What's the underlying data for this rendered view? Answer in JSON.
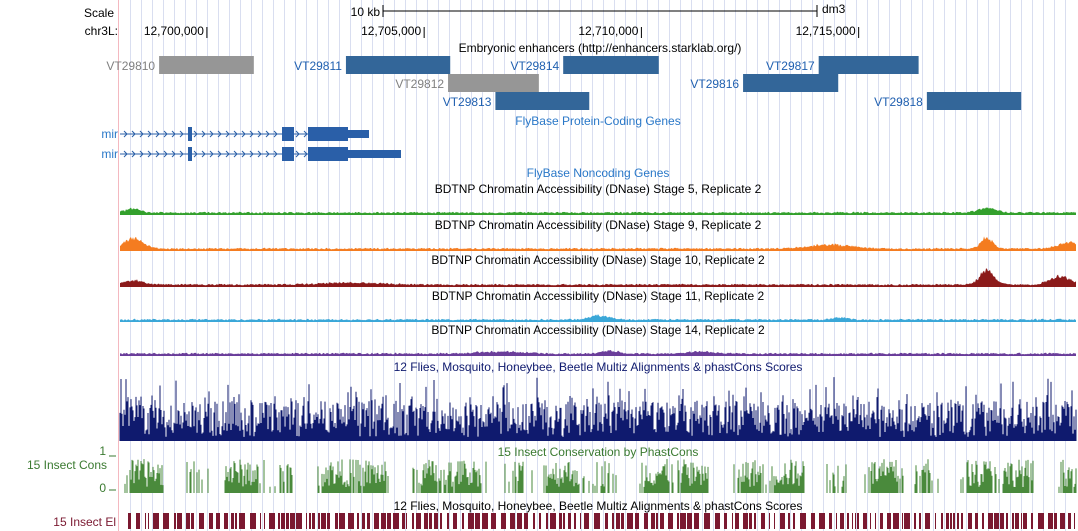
{
  "ruler": {
    "scale_label": "Scale",
    "chrom_label": "chr3L:",
    "scale_bar_label": "10 kb",
    "assembly": "dm3",
    "ticks": [
      {
        "pos": 12700000,
        "label": "12,700,000"
      },
      {
        "pos": 12705000,
        "label": "12,705,000"
      },
      {
        "pos": 12710000,
        "label": "12,710,000"
      },
      {
        "pos": 12715000,
        "label": "12,715,000"
      }
    ]
  },
  "tracks": {
    "enhancers": {
      "title": "Embryonic enhancers (http://enhancers.starklab.org/)",
      "items": [
        {
          "name": "VT29810",
          "start": 12698900,
          "end": 12701080,
          "row": 0,
          "color": "#969696"
        },
        {
          "name": "VT29811",
          "start": 12703200,
          "end": 12705600,
          "row": 0,
          "color": "#336699"
        },
        {
          "name": "VT29814",
          "start": 12708200,
          "end": 12710400,
          "row": 0,
          "color": "#336699"
        },
        {
          "name": "VT29817",
          "start": 12714080,
          "end": 12716380,
          "row": 0,
          "color": "#336699"
        },
        {
          "name": "VT29812",
          "start": 12705550,
          "end": 12707640,
          "row": 1,
          "color": "#969696"
        },
        {
          "name": "VT29816",
          "start": 12712340,
          "end": 12714530,
          "row": 1,
          "color": "#336699"
        },
        {
          "name": "VT29813",
          "start": 12706640,
          "end": 12708800,
          "row": 2,
          "color": "#336699"
        },
        {
          "name": "VT29818",
          "start": 12716570,
          "end": 12718740,
          "row": 2,
          "color": "#336699"
        }
      ]
    },
    "protein_genes": {
      "title": "FlyBase Protein-Coding Genes",
      "transcripts": [
        {
          "label": "mir"
        },
        {
          "label": "mir"
        }
      ]
    },
    "noncoding": {
      "title": "FlyBase Noncoding Genes"
    },
    "dnase": [
      {
        "title": "BDTNP Chromatin Accessibility (DNase) Stage 5, Replicate 2",
        "color": "#33a02c"
      },
      {
        "title": "BDTNP Chromatin Accessibility (DNase) Stage 9, Replicate 2",
        "color": "#f47c20"
      },
      {
        "title": "BDTNP Chromatin Accessibility (DNase) Stage 10, Replicate 2",
        "color": "#8b1a1a"
      },
      {
        "title": "BDTNP Chromatin Accessibility (DNase) Stage 11, Replicate 2",
        "color": "#3aa7d8"
      },
      {
        "title": "BDTNP Chromatin Accessibility (DNase) Stage 14, Replicate 2",
        "color": "#6a3d9a"
      }
    ],
    "multiz": {
      "title": "12 Flies, Mosquito, Honeybee, Beetle Multiz Alignments & phastCons Scores",
      "color": "#0f1a6e"
    },
    "cons": {
      "title": "15 Insect Conservation by PhastCons",
      "left_label": "15 Insect Cons",
      "axis_max": "1",
      "axis_min": "0",
      "color": "#4a8a3c"
    },
    "elements": {
      "title": "12 Flies, Mosquito, Honeybee, Beetle Multiz Alignments & phastCons Scores",
      "left_label": "15 Insect El",
      "color": "#7a1830"
    }
  },
  "colors": {
    "gene_blue": "#2a5fa8",
    "label_blue": "#2a78c8",
    "gene_label_blue": "#2060b0",
    "gray_label": "#808080",
    "cons_label": "#3a7a30",
    "el_label": "#7a1830"
  }
}
